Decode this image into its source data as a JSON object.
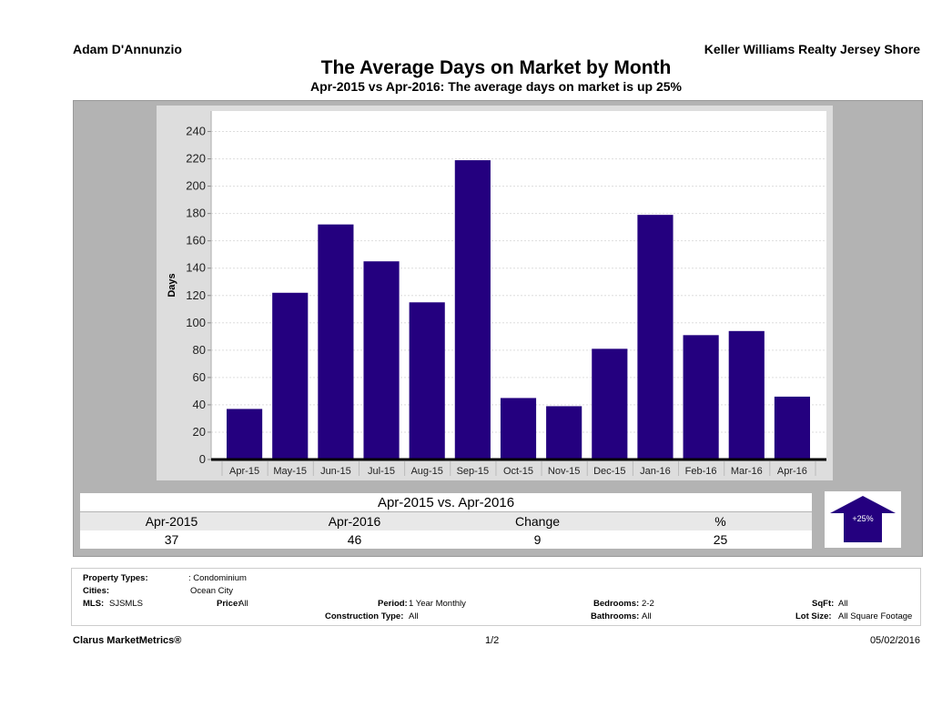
{
  "header": {
    "agent": "Adam D'Annunzio",
    "brokerage": "Keller Williams Realty Jersey Shore"
  },
  "chart_data": {
    "type": "bar",
    "title": "The Average Days on Market by Month",
    "subtitle": "Apr-2015 vs Apr-2016: The average days on market is up 25%",
    "xlabel": "",
    "ylabel": "Days",
    "ylim": [
      0,
      255
    ],
    "yticks": [
      0,
      20,
      40,
      60,
      80,
      100,
      120,
      140,
      160,
      180,
      200,
      220,
      240
    ],
    "grid": true,
    "bar_color": "#24007f",
    "categories": [
      "Apr-15",
      "May-15",
      "Jun-15",
      "Jul-15",
      "Aug-15",
      "Sep-15",
      "Oct-15",
      "Nov-15",
      "Dec-15",
      "Jan-16",
      "Feb-16",
      "Mar-16",
      "Apr-16"
    ],
    "values": [
      37,
      122,
      172,
      145,
      115,
      219,
      45,
      39,
      81,
      179,
      91,
      94,
      46
    ]
  },
  "summary": {
    "heading": "Apr-2015 vs. Apr-2016",
    "columns": [
      "Apr-2015",
      "Apr-2016",
      "Change",
      "%"
    ],
    "values": [
      "37",
      "46",
      "9",
      "25"
    ],
    "badge": "+25%",
    "direction": "up-arrow-icon"
  },
  "info": {
    "property_types_label": "Property Types:",
    "property_types": ": Condominium",
    "cities_label": "Cities:",
    "cities": "Ocean City",
    "mls_label": "MLS:",
    "mls": "SJSMLS",
    "price_label": "Price:",
    "price": "All",
    "period_label": "Period:",
    "period": "1 Year Monthly",
    "bedrooms_label": "Bedrooms:",
    "bedrooms": "2-2",
    "sqft_label": "SqFt:",
    "sqft": "All",
    "construction_label": "Construction Type:",
    "construction": "All",
    "bathrooms_label": "Bathrooms:",
    "bathrooms": "All",
    "lot_label": "Lot Size:",
    "lot": "All Square Footage"
  },
  "footer": {
    "brand": "Clarus MarketMetrics®",
    "page": "1/2",
    "date": "05/02/2016"
  }
}
